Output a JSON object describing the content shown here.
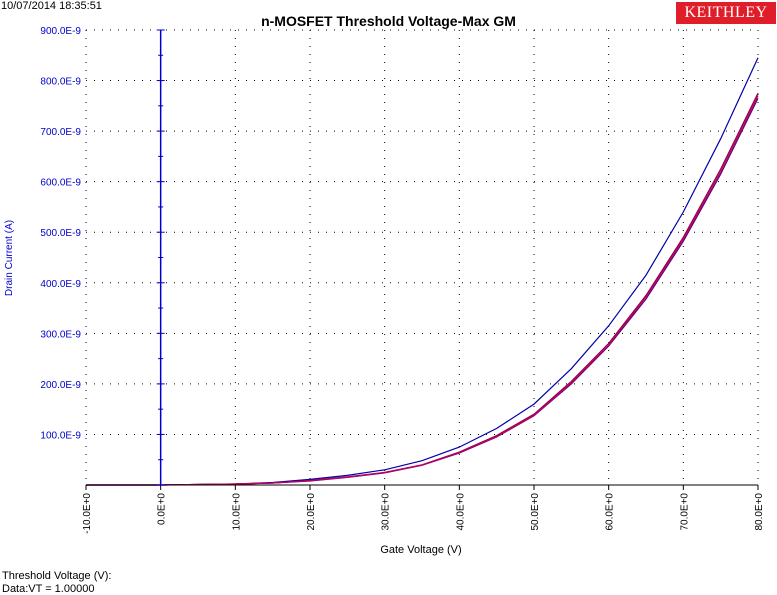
{
  "header": {
    "timestamp": "10/07/2014 18:35:51",
    "title": "n-MOSFET Threshold Voltage-Max GM",
    "logo": "KEITHLEY"
  },
  "footer": {
    "line1": "Threshold Voltage (V):",
    "line2": "Data:VT = 1.00000"
  },
  "colors": {
    "axis": "#0000cc",
    "grid": "#000000",
    "series": [
      "#0000aa",
      "#8b0040",
      "#5a0080",
      "#c00060"
    ]
  },
  "chart_data": {
    "type": "line",
    "title": "n-MOSFET Threshold Voltage-Max GM",
    "xlabel": "Gate Voltage (V)",
    "ylabel": "Drain Current (A)",
    "xlim": [
      -10,
      80
    ],
    "ylim": [
      0,
      9e-07
    ],
    "grid": true,
    "x_tick_labels": [
      "-10.0E+0",
      "0.0E+0",
      "10.0E+0",
      "20.0E+0",
      "30.0E+0",
      "40.0E+0",
      "50.0E+0",
      "60.0E+0",
      "70.0E+0",
      "80.0E+0"
    ],
    "y_tick_labels": [
      "100.0E-9",
      "200.0E-9",
      "300.0E-9",
      "400.0E-9",
      "500.0E-9",
      "600.0E-9",
      "700.0E-9",
      "800.0E-9",
      "900.0E-9"
    ],
    "x": [
      -10,
      0,
      5,
      10,
      15,
      20,
      25,
      30,
      35,
      40,
      45,
      50,
      55,
      60,
      65,
      70,
      75,
      80
    ],
    "series": [
      {
        "values": [
          0,
          0,
          1e-09,
          2e-09,
          5e-09,
          1.1e-08,
          1.9e-08,
          3e-08,
          4.8e-08,
          7.5e-08,
          1.12e-07,
          1.6e-07,
          2.3e-07,
          3.15e-07,
          4.15e-07,
          5.4e-07,
          6.85e-07,
          8.45e-07
        ]
      },
      {
        "values": [
          0,
          0,
          1e-09,
          2e-09,
          4e-09,
          9e-09,
          1.6e-08,
          2.5e-08,
          4e-08,
          6.5e-08,
          9.8e-08,
          1.4e-07,
          2.05e-07,
          2.8e-07,
          3.75e-07,
          4.9e-07,
          6.25e-07,
          7.75e-07
        ]
      },
      {
        "values": [
          0,
          0,
          1e-09,
          2e-09,
          4e-09,
          8e-09,
          1.5e-08,
          2.4e-08,
          3.9e-08,
          6.3e-08,
          9.5e-08,
          1.37e-07,
          2e-07,
          2.75e-07,
          3.68e-07,
          4.82e-07,
          6.15e-07,
          7.65e-07
        ]
      },
      {
        "values": [
          0,
          0,
          1e-09,
          2e-09,
          4e-09,
          8.5e-09,
          1.55e-08,
          2.45e-08,
          3.95e-08,
          6.4e-08,
          9.6e-08,
          1.38e-07,
          2.02e-07,
          2.77e-07,
          3.72e-07,
          4.86e-07,
          6.2e-07,
          7.7e-07
        ]
      }
    ]
  }
}
